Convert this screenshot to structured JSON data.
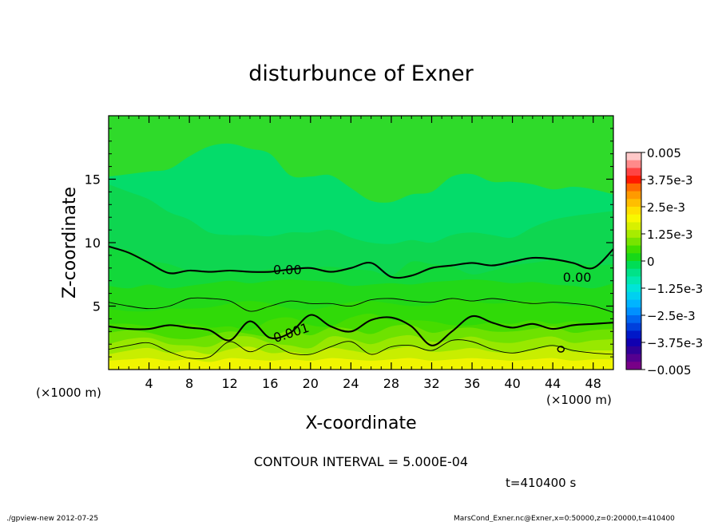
{
  "chart_data": {
    "type": "contour",
    "title": "disturbunce of Exner",
    "xlabel": "X-coordinate",
    "ylabel": "Z-coordinate",
    "x_units_left": "(×1000 m)",
    "x_units_right": "(×1000 m)",
    "xlim": [
      0,
      50
    ],
    "ylim": [
      0,
      20
    ],
    "x_ticks": [
      4,
      8,
      12,
      16,
      20,
      24,
      28,
      32,
      36,
      40,
      44,
      48
    ],
    "y_ticks": [
      5,
      10,
      15
    ],
    "contour_labels": [
      {
        "text": "0.00",
        "x": 16.3,
        "z": 7.9
      },
      {
        "text": "0.00",
        "x": 45.0,
        "z": 7.3
      },
      {
        "text": "0.001",
        "x": 16.5,
        "z": 2.5
      }
    ],
    "colorbar": {
      "min": -0.005,
      "max": 0.005,
      "labels": [
        "0.005",
        "3.75e-3",
        "2.5e-3",
        "1.25e-3",
        "0",
        "−1.25e-3",
        "−2.5e-3",
        "−3.75e-3",
        "−0.005"
      ],
      "colors": [
        "#ffc8c8",
        "#ff8a8a",
        "#ff4444",
        "#ff1a00",
        "#ff6a00",
        "#ff9a00",
        "#ffbe00",
        "#ffe000",
        "#f8f800",
        "#d8f000",
        "#a8ec00",
        "#78e400",
        "#40de00",
        "#18d818",
        "#00dd55",
        "#00e288",
        "#00e8b0",
        "#00e4d8",
        "#00d0f0",
        "#00b4ff",
        "#0090ff",
        "#0066f0",
        "#0040dc",
        "#0018c8",
        "#1000b0",
        "#300098",
        "#550090",
        "#780088"
      ]
    },
    "bands": [
      {
        "color": "#f0f500",
        "z": [
          0.7,
          0.8,
          0.9,
          0.7,
          0.8,
          0.6,
          0.9,
          0.8,
          0.7,
          0.8,
          0.7,
          0.9,
          0.8,
          0.7,
          0.8,
          0.9,
          0.7,
          0.8,
          0.9,
          0.8,
          0.7,
          0.8,
          0.9,
          0.7,
          0.8,
          0.8
        ]
      },
      {
        "color": "#c8ee00",
        "z": [
          1.2,
          1.5,
          1.7,
          1.3,
          1.5,
          1.2,
          1.6,
          1.8,
          1.3,
          1.4,
          1.2,
          1.7,
          1.5,
          1.3,
          1.6,
          1.8,
          1.4,
          1.5,
          1.7,
          1.4,
          1.3,
          1.5,
          1.8,
          1.4,
          1.5,
          1.5
        ]
      },
      {
        "color": "#98e800",
        "z": [
          2.0,
          2.4,
          2.5,
          2.0,
          1.9,
          1.8,
          2.5,
          2.6,
          2.1,
          1.9,
          1.7,
          2.6,
          2.4,
          2.0,
          2.5,
          2.7,
          2.2,
          2.3,
          2.6,
          2.2,
          2.1,
          2.4,
          2.6,
          2.1,
          2.3,
          2.4
        ]
      },
      {
        "color": "#6ee200",
        "z": [
          2.9,
          3.1,
          2.9,
          2.5,
          2.4,
          2.7,
          3.0,
          2.8,
          2.6,
          3.1,
          2.7,
          3.3,
          3.2,
          2.8,
          3.4,
          3.5,
          2.9,
          3.2,
          3.3,
          3.0,
          3.0,
          3.2,
          3.4,
          2.9,
          3.1,
          3.2
        ]
      },
      {
        "color": "#46dc00",
        "z": [
          3.6,
          3.6,
          3.4,
          3.5,
          3.6,
          3.3,
          3.4,
          3.1,
          3.9,
          4.1,
          3.5,
          3.4,
          4.1,
          4.4,
          3.9,
          3.9,
          3.8,
          3.5,
          3.5,
          3.7,
          3.6,
          3.9,
          3.6,
          3.8,
          3.5,
          3.7
        ]
      },
      {
        "color": "#30da08",
        "z": [
          4.8,
          4.6,
          4.6,
          4.8,
          4.8,
          4.9,
          5.2,
          5.4,
          5.2,
          4.8,
          4.7,
          5.0,
          5.3,
          5.4,
          5.2,
          5.0,
          5.1,
          5.6,
          5.4,
          5.2,
          5.3,
          5.4,
          5.2,
          5.0,
          5.0,
          4.4
        ]
      },
      {
        "color": "#22d818",
        "z": [
          6.6,
          6.4,
          6.7,
          6.4,
          6.6,
          6.8,
          7.0,
          6.8,
          7.0,
          7.1,
          7.0,
          6.9,
          6.6,
          6.7,
          6.8,
          6.7,
          6.9,
          7.0,
          7.1,
          7.0,
          6.8,
          6.9,
          6.7,
          6.6,
          6.4,
          6.8
        ]
      },
      {
        "color": "#12d83a",
        "z": [
          9.6,
          9.4,
          8.6,
          8.3,
          7.8,
          7.8,
          7.9,
          7.7,
          7.9,
          7.9,
          8.0,
          8.1,
          7.9,
          7.8,
          7.4,
          8.5,
          8.3,
          8.1,
          7.5,
          7.8,
          8.2,
          8.4,
          8.6,
          8.4,
          8.2,
          8.3
        ]
      },
      {
        "color": "#0ed650",
        "z": [
          14.6,
          14.0,
          13.4,
          12.4,
          11.8,
          10.8,
          10.6,
          10.6,
          10.5,
          10.8,
          10.8,
          11.0,
          10.4,
          10.0,
          9.9,
          10.2,
          10.0,
          10.6,
          10.8,
          10.6,
          10.4,
          11.2,
          11.8,
          12.1,
          12.3,
          12.5
        ]
      },
      {
        "color": "#04dc6a",
        "z": [
          15.2,
          15.4,
          15.6,
          15.8,
          16.8,
          17.6,
          17.8,
          17.4,
          17.0,
          15.3,
          15.2,
          15.3,
          14.3,
          13.3,
          13.2,
          13.8,
          14.0,
          15.2,
          15.4,
          14.8,
          14.8,
          14.6,
          14.2,
          14.4,
          14.2,
          13.8
        ]
      }
    ],
    "contour_lines": [
      {
        "level": "0.00",
        "style": "thick",
        "z": [
          9.7,
          9.2,
          8.4,
          7.6,
          7.8,
          7.7,
          7.8,
          7.7,
          7.7,
          7.9,
          8.0,
          7.7,
          8.0,
          8.4,
          7.3,
          7.4,
          8.0,
          8.2,
          8.4,
          8.2,
          8.5,
          8.8,
          8.7,
          8.4,
          8.0,
          9.5
        ]
      },
      {
        "level": "5.0E-4",
        "style": "thin",
        "z": [
          5.3,
          5.0,
          4.8,
          5.0,
          5.6,
          5.6,
          5.4,
          4.6,
          5.0,
          5.4,
          5.2,
          5.2,
          5.0,
          5.5,
          5.6,
          5.4,
          5.3,
          5.6,
          5.4,
          5.6,
          5.4,
          5.2,
          5.3,
          5.2,
          5.0,
          4.5
        ]
      },
      {
        "level": "0.001",
        "style": "thick",
        "z": [
          3.4,
          3.2,
          3.2,
          3.5,
          3.3,
          3.1,
          2.3,
          3.8,
          2.5,
          2.9,
          4.3,
          3.4,
          3.0,
          3.9,
          4.1,
          3.4,
          1.9,
          3.0,
          4.2,
          3.7,
          3.3,
          3.6,
          3.2,
          3.5,
          3.6,
          3.7
        ]
      },
      {
        "level": "0.0015",
        "style": "thin",
        "z": [
          1.6,
          1.9,
          2.1,
          1.4,
          0.9,
          1.0,
          2.2,
          1.4,
          2.0,
          1.3,
          1.2,
          1.8,
          2.2,
          1.2,
          1.8,
          1.9,
          1.5,
          2.3,
          2.2,
          1.6,
          1.3,
          1.6,
          1.9,
          1.5,
          1.3,
          1.2
        ]
      }
    ]
  },
  "annotations": {
    "contour_interval": "CONTOUR INTERVAL = 5.000E-04",
    "time": "t=410400 s",
    "footer_left": "./gpview-new  2012-07-25",
    "footer_right": "MarsCond_Exner.nc@Exner,x=0:50000,z=0:20000,t=410400"
  }
}
